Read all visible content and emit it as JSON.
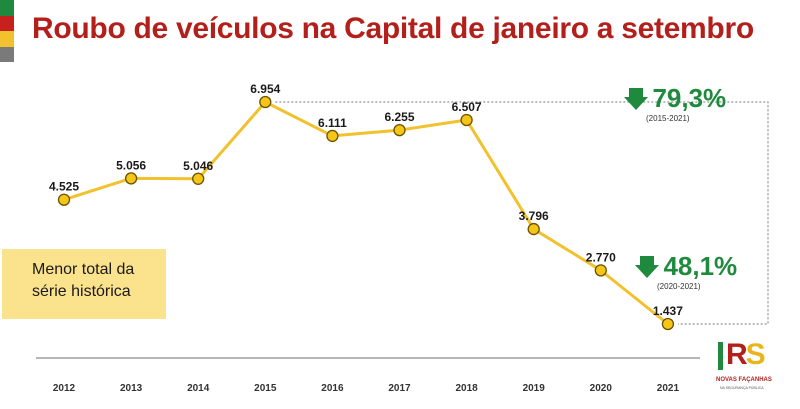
{
  "title": "Roubo de veículos na Capital de janeiro a setembro",
  "callout": {
    "line1": "Menor total da",
    "line2": "série histórica"
  },
  "stats": [
    {
      "value": "79,3%",
      "range": "(2015-2021)"
    },
    {
      "value": "48,1%",
      "range": "(2020-2021)"
    }
  ],
  "logo": {
    "mark": "RS",
    "line1": "NOVAS FAÇANHAS",
    "line2": "NA SEGURANÇA PÚBLICA"
  },
  "colors": {
    "title": "#b3201c",
    "line": "#f2c12e",
    "point_fill": "#f5c518",
    "point_stroke": "#6b5200",
    "stat_green": "#1f8a3e",
    "callout_bg": "#fbe28c",
    "flag": [
      "#1f8a3e",
      "#c8201c",
      "#f2c12e",
      "#7a7a7a"
    ]
  },
  "chart_data": {
    "type": "line",
    "title": "Roubo de veículos na Capital de janeiro a setembro",
    "xlabel": "",
    "ylabel": "",
    "categories": [
      "2012",
      "2013",
      "2014",
      "2015",
      "2016",
      "2017",
      "2018",
      "2019",
      "2020",
      "2021"
    ],
    "values": [
      4525,
      5056,
      5046,
      6954,
      6111,
      6255,
      6507,
      3796,
      2770,
      1437
    ],
    "data_labels": [
      "4.525",
      "5.056",
      "5.046",
      "6.954",
      "6.111",
      "6.255",
      "6.507",
      "3.796",
      "2.770",
      "1.437"
    ],
    "ylim": [
      1437,
      6954
    ],
    "grid": false,
    "legend": "none"
  }
}
